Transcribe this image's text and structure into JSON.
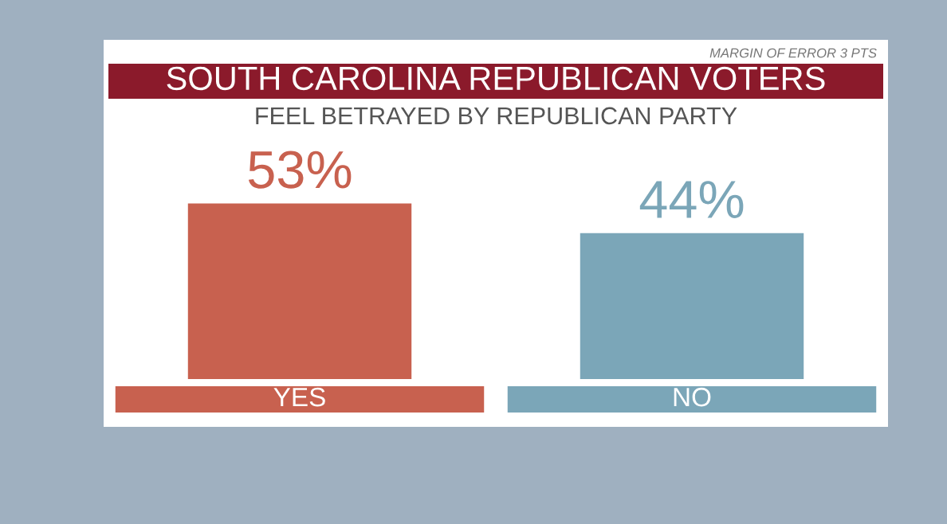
{
  "chart_data": {
    "type": "bar",
    "title": "SOUTH CAROLINA REPUBLICAN VOTERS",
    "subtitle": "FEEL BETRAYED BY REPUBLICAN PARTY",
    "categories": [
      "YES",
      "NO"
    ],
    "values": [
      53,
      44
    ],
    "colors": [
      "#c8614f",
      "#7ba6b8"
    ],
    "value_labels": [
      "53%",
      "44%"
    ],
    "annotations": [
      "MARGIN OF ERROR 3 PTS"
    ]
  }
}
